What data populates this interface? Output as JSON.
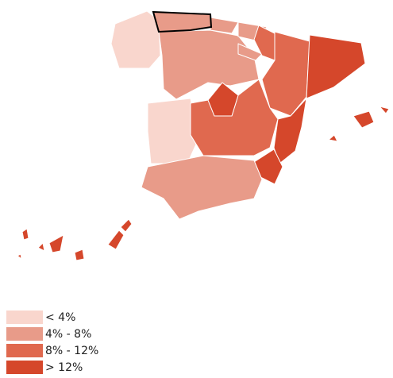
{
  "legend": [
    {
      "label": "< 4%",
      "color": "#f9d6cd"
    },
    {
      "label": "4% - 8%",
      "color": "#e89b89"
    },
    {
      "label": "8% - 12%",
      "color": "#e0694f"
    },
    {
      "label": "> 12%",
      "color": "#d5472b"
    }
  ]
}
